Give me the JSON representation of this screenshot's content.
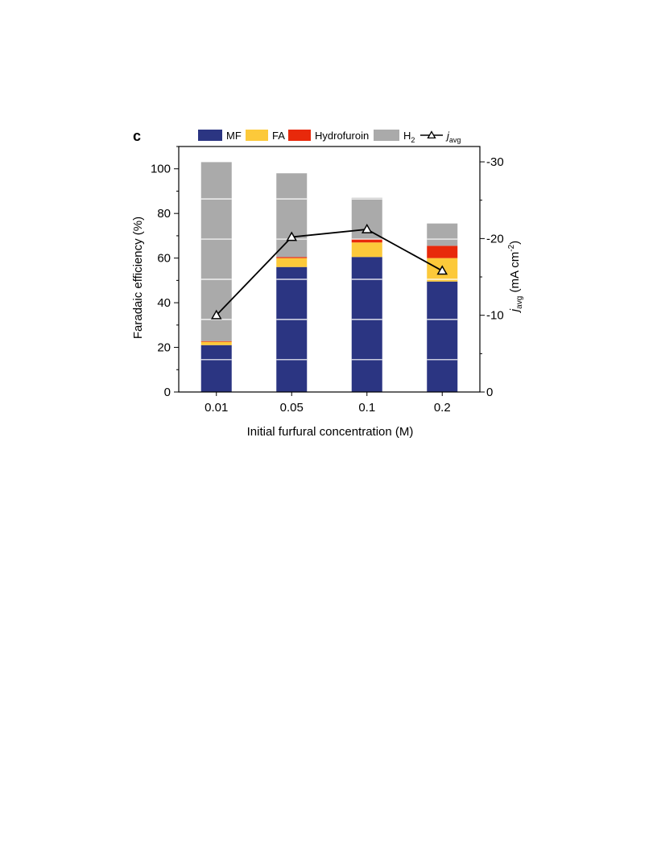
{
  "panel_label": "c",
  "chart_data": {
    "type": "bar",
    "stacked": true,
    "categories": [
      "0.01",
      "0.05",
      "0.1",
      "0.2"
    ],
    "xlabel": "Initial furfural concentration (M)",
    "ylabel": "Faradaic efficiency (%)",
    "ylim": [
      0,
      110
    ],
    "yticks": [
      "0",
      "20",
      "40",
      "60",
      "80",
      "100"
    ],
    "y2label": {
      "main": "j",
      "sub": "avg",
      "unit": " (mA cm",
      "sup": "-2",
      "close": ")"
    },
    "y2lim": [
      0,
      -32
    ],
    "y2ticks": [
      "0",
      "-10",
      "-20",
      "-30"
    ],
    "series": [
      {
        "name": "MF",
        "color": "#2b3582",
        "values": [
          21,
          56,
          60.5,
          49.5
        ]
      },
      {
        "name": "FA",
        "color": "#fcc93a",
        "values": [
          1.5,
          4,
          6.5,
          10.5
        ]
      },
      {
        "name": "Hydrofuroin",
        "color": "#e8290b",
        "values": [
          0.3,
          0.5,
          1.5,
          5.5
        ]
      },
      {
        "name": "H2",
        "color": "#aaaaaa",
        "values": [
          80.2,
          37.5,
          18.5,
          10
        ]
      }
    ],
    "line_series": {
      "name": "javg",
      "marker": "triangle",
      "color": "#000000",
      "values": [
        -10,
        -20.2,
        -21.2,
        -15.8
      ]
    },
    "legend": {
      "position": "top",
      "items": [
        {
          "label": "MF"
        },
        {
          "label": "FA"
        },
        {
          "label": "Hydrofuroin"
        },
        {
          "label": "H",
          "sub": "2"
        },
        {
          "label": "j",
          "sub": "avg",
          "italic": true
        }
      ]
    },
    "grid": false
  }
}
